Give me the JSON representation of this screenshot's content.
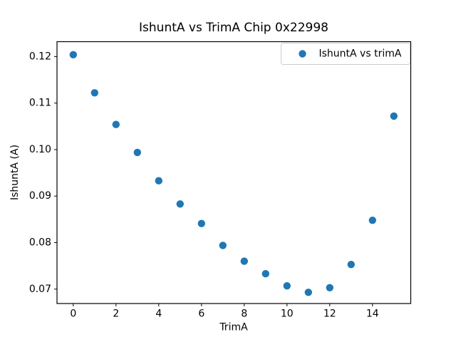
{
  "figure": {
    "background": "#ffffff"
  },
  "chart_data": {
    "type": "scatter",
    "title": "IshuntA vs TrimA Chip 0x22998",
    "xlabel": "TrimA",
    "ylabel": "IshuntA (A)",
    "legend": {
      "label": "IshuntA vs trimA",
      "position": "upper right"
    },
    "x": [
      0,
      1,
      2,
      3,
      4,
      5,
      6,
      7,
      8,
      9,
      10,
      11,
      12,
      13,
      14,
      15
    ],
    "y": [
      0.1204,
      0.1122,
      0.1054,
      0.0994,
      0.0933,
      0.0883,
      0.0841,
      0.0794,
      0.076,
      0.0733,
      0.0707,
      0.0693,
      0.0703,
      0.0753,
      0.0848,
      0.1072
    ],
    "xlim": [
      -0.76,
      15.79
    ],
    "ylim": [
      0.0669,
      0.1232
    ],
    "xticks": [
      0,
      2,
      4,
      6,
      8,
      10,
      12,
      14
    ],
    "yticks": [
      0.07,
      0.08,
      0.09,
      0.1,
      0.11,
      0.12
    ],
    "grid": false,
    "marker_color": "#1f77b4",
    "spine_color": "#000000",
    "legend_border_color": "#cccccc"
  }
}
